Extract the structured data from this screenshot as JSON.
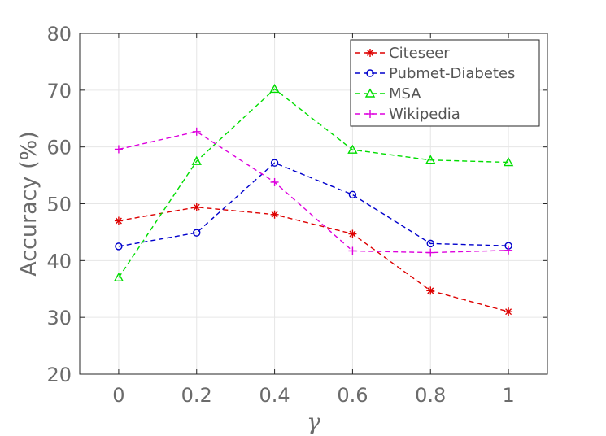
{
  "chart_data": {
    "type": "line",
    "title": "",
    "xlabel": "γ",
    "ylabel": "Accuracy (%)",
    "x": [
      0,
      0.2,
      0.4,
      0.6,
      0.8,
      1
    ],
    "x_tick_labels": [
      "0",
      "0.2",
      "0.4",
      "0.6",
      "0.8",
      "1"
    ],
    "y_tick_labels": [
      "20",
      "30",
      "40",
      "50",
      "60",
      "70",
      "80"
    ],
    "xlim": [
      -0.1,
      1.1
    ],
    "ylim": [
      20,
      80
    ],
    "grid": true,
    "legend_position": "top-right",
    "series": [
      {
        "name": "Citeseer",
        "color": "#dd0000",
        "marker": "asterisk",
        "values": [
          47.0,
          49.4,
          48.1,
          44.7,
          34.7,
          31.0
        ]
      },
      {
        "name": "Pubmet-Diabetes",
        "color": "#0000cc",
        "marker": "circle",
        "values": [
          42.5,
          44.9,
          57.2,
          51.6,
          43.0,
          42.6
        ]
      },
      {
        "name": "MSA",
        "color": "#00dd00",
        "marker": "triangle",
        "values": [
          37.0,
          57.5,
          70.2,
          59.5,
          57.7,
          57.3
        ]
      },
      {
        "name": "Wikipedia",
        "color": "#dd00dd",
        "marker": "plus",
        "values": [
          59.6,
          62.7,
          53.8,
          41.7,
          41.4,
          41.8
        ]
      }
    ]
  }
}
